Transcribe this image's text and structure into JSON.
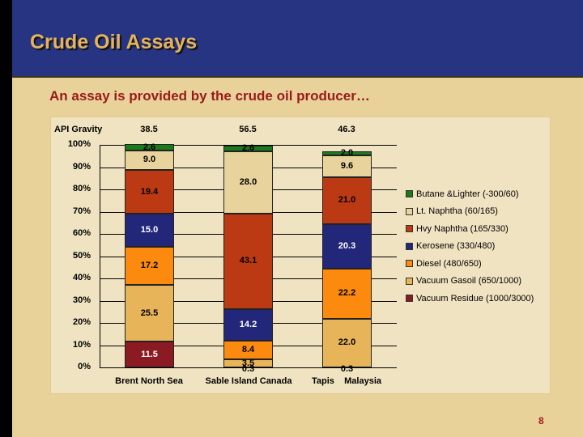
{
  "slide": {
    "title": "Crude Oil Assays",
    "subtitle": "An assay is provided by the crude oil producer…",
    "page_number": "8"
  },
  "colors": {
    "header_bg": "#263482",
    "title": "#e4b35e",
    "subtitle": "#9a1a1a",
    "slide_bg": "#e8d29a",
    "chart_bg": "#f0e3c1"
  },
  "chart_data": {
    "type": "bar",
    "stacked": true,
    "percent": true,
    "title": "",
    "xlabel": "",
    "ylabel": "",
    "ylim": [
      0,
      100
    ],
    "yticks": [
      "0%",
      "10%",
      "20%",
      "30%",
      "40%",
      "50%",
      "60%",
      "70%",
      "80%",
      "90%",
      "100%"
    ],
    "grid": true,
    "legend_position": "right",
    "categories": [
      "Brent North Sea",
      "Sable Island Canada",
      "Tapis    Malaysia"
    ],
    "api_gravity_label": "API Gravity",
    "api_gravity": [
      "38.5",
      "56.5",
      "46.3"
    ],
    "series": [
      {
        "name": "Vacuum Residue (1000/3000)",
        "color": "#8b1a22",
        "text_color": "#ffffff",
        "values": [
          11.5,
          0.0,
          0.0
        ]
      },
      {
        "name": "Vacuum Gasoil (650/1000)",
        "color": "#e8b45a",
        "text_color": "#000000",
        "values": [
          25.5,
          3.5,
          22.0
        ]
      },
      {
        "name": "Diesel (480/650)",
        "color": "#fb8a0f",
        "text_color": "#000000",
        "values": [
          17.2,
          8.4,
          22.2
        ]
      },
      {
        "name": "Kerosene (330/480)",
        "color": "#22277a",
        "text_color": "#ffffff",
        "values": [
          15.0,
          14.2,
          20.3
        ]
      },
      {
        "name": "Hvy Naphtha (165/330)",
        "color": "#bb3a13",
        "text_color": "#000000",
        "values": [
          19.4,
          43.1,
          21.0
        ]
      },
      {
        "name": "Lt. Naphtha (60/165)",
        "color": "#e8d39c",
        "text_color": "#000000",
        "values": [
          9.0,
          28.0,
          9.6
        ]
      },
      {
        "name": "Butane &Lighter (-300/60)",
        "color": "#1b7a1b",
        "text_color": "#000000",
        "values": [
          2.6,
          2.6,
          2.0
        ]
      }
    ],
    "extra_labels": [
      {
        "category": "Sable Island Canada",
        "label": "0.3"
      },
      {
        "category": "Tapis    Malaysia",
        "label": "0.3"
      }
    ]
  }
}
